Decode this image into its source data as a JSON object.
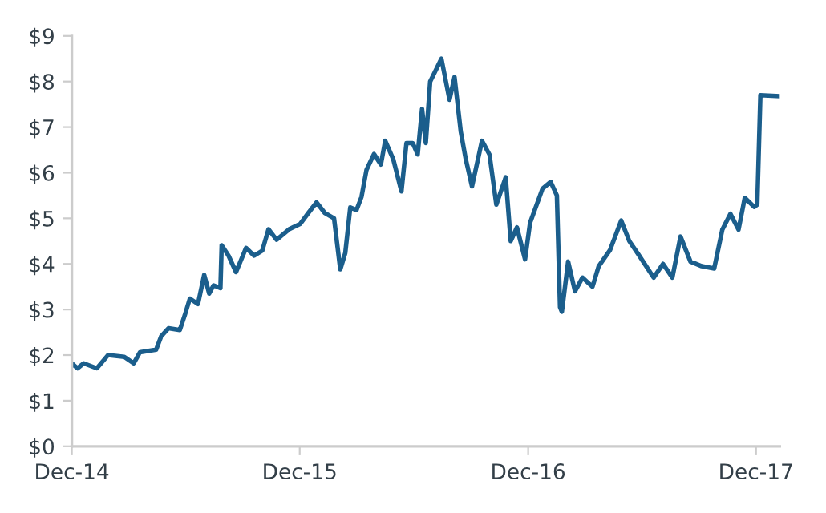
{
  "chart_data": {
    "type": "line",
    "grid": false,
    "legend": false,
    "line_style": "solid",
    "marker": "none",
    "x": [
      "2014-12-01",
      "2014-12-10",
      "2014-12-20",
      "2015-01-10",
      "2015-01-28",
      "2015-02-23",
      "2015-03-10",
      "2015-03-20",
      "2015-04-15",
      "2015-04-23",
      "2015-05-05",
      "2015-05-23",
      "2015-05-31",
      "2015-06-08",
      "2015-06-21",
      "2015-07-01",
      "2015-07-09",
      "2015-07-16",
      "2015-07-27",
      "2015-07-29",
      "2015-08-09",
      "2015-08-21",
      "2015-09-06",
      "2015-09-19",
      "2015-10-02",
      "2015-10-12",
      "2015-10-25",
      "2015-11-14",
      "2015-12-02",
      "2015-12-15",
      "2015-12-28",
      "2016-01-10",
      "2016-01-25",
      "2016-02-04",
      "2016-02-12",
      "2016-02-20",
      "2016-03-01",
      "2016-03-09",
      "2016-03-17",
      "2016-03-29",
      "2016-04-09",
      "2016-04-16",
      "2016-04-29",
      "2016-05-12",
      "2016-05-20",
      "2016-05-30",
      "2016-06-07",
      "2016-06-14",
      "2016-06-20",
      "2016-06-27",
      "2016-07-15",
      "2016-07-28",
      "2016-08-05",
      "2016-08-15",
      "2016-08-23",
      "2016-09-02",
      "2016-09-18",
      "2016-09-30",
      "2016-10-11",
      "2016-10-26",
      "2016-11-03",
      "2016-11-13",
      "2016-11-26",
      "2016-12-04",
      "2016-12-24",
      "2017-01-06",
      "2017-01-16",
      "2017-01-21",
      "2017-01-24",
      "2017-02-03",
      "2017-02-14",
      "2017-02-26",
      "2017-03-14",
      "2017-03-24",
      "2017-04-11",
      "2017-04-29",
      "2017-05-12",
      "2017-05-27",
      "2017-06-20",
      "2017-07-05",
      "2017-07-20",
      "2017-08-02",
      "2017-08-18",
      "2017-09-05",
      "2017-09-25",
      "2017-10-08",
      "2017-10-21",
      "2017-11-03",
      "2017-11-13",
      "2017-11-28",
      "2017-12-03",
      "2017-12-08",
      "2018-01-08"
    ],
    "series": [
      {
        "color": "#1b5e8c",
        "values": [
          1.82,
          1.71,
          1.82,
          1.71,
          2.0,
          1.96,
          1.82,
          2.06,
          2.12,
          2.41,
          2.59,
          2.55,
          2.88,
          3.24,
          3.12,
          3.76,
          3.35,
          3.53,
          3.47,
          4.41,
          4.18,
          3.82,
          4.35,
          4.18,
          4.29,
          4.76,
          4.53,
          4.76,
          4.88,
          5.12,
          5.35,
          5.12,
          5.0,
          3.88,
          4.24,
          5.24,
          5.18,
          5.47,
          6.06,
          6.41,
          6.18,
          6.7,
          6.29,
          5.59,
          6.65,
          6.65,
          6.4,
          7.4,
          6.65,
          8.0,
          8.5,
          7.6,
          8.1,
          6.9,
          6.3,
          5.7,
          6.7,
          6.4,
          5.3,
          5.9,
          4.5,
          4.8,
          4.1,
          4.9,
          5.65,
          5.8,
          5.5,
          3.05,
          2.95,
          4.05,
          3.4,
          3.7,
          3.5,
          3.95,
          4.3,
          4.95,
          4.5,
          4.2,
          3.7,
          4.0,
          3.7,
          4.6,
          4.05,
          3.95,
          3.9,
          4.75,
          5.1,
          4.75,
          5.45,
          5.25,
          5.3,
          7.7,
          7.68
        ]
      }
    ],
    "xlim": [
      "2014-12-01",
      "2018-01-08"
    ],
    "xticks": [
      {
        "value": "2014-12-01",
        "label": "Dec-14"
      },
      {
        "value": "2015-12-01",
        "label": "Dec-15"
      },
      {
        "value": "2016-12-01",
        "label": "Dec-16"
      },
      {
        "value": "2017-12-01",
        "label": "Dec-17"
      }
    ],
    "ylim": [
      0,
      9
    ],
    "yticks": [
      {
        "value": 0,
        "label": "$0"
      },
      {
        "value": 1,
        "label": "$1"
      },
      {
        "value": 2,
        "label": "$2"
      },
      {
        "value": 3,
        "label": "$3"
      },
      {
        "value": 4,
        "label": "$4"
      },
      {
        "value": 5,
        "label": "$5"
      },
      {
        "value": 6,
        "label": "$6"
      },
      {
        "value": 7,
        "label": "$7"
      },
      {
        "value": 8,
        "label": "$8"
      },
      {
        "value": 9,
        "label": "$9"
      }
    ]
  }
}
